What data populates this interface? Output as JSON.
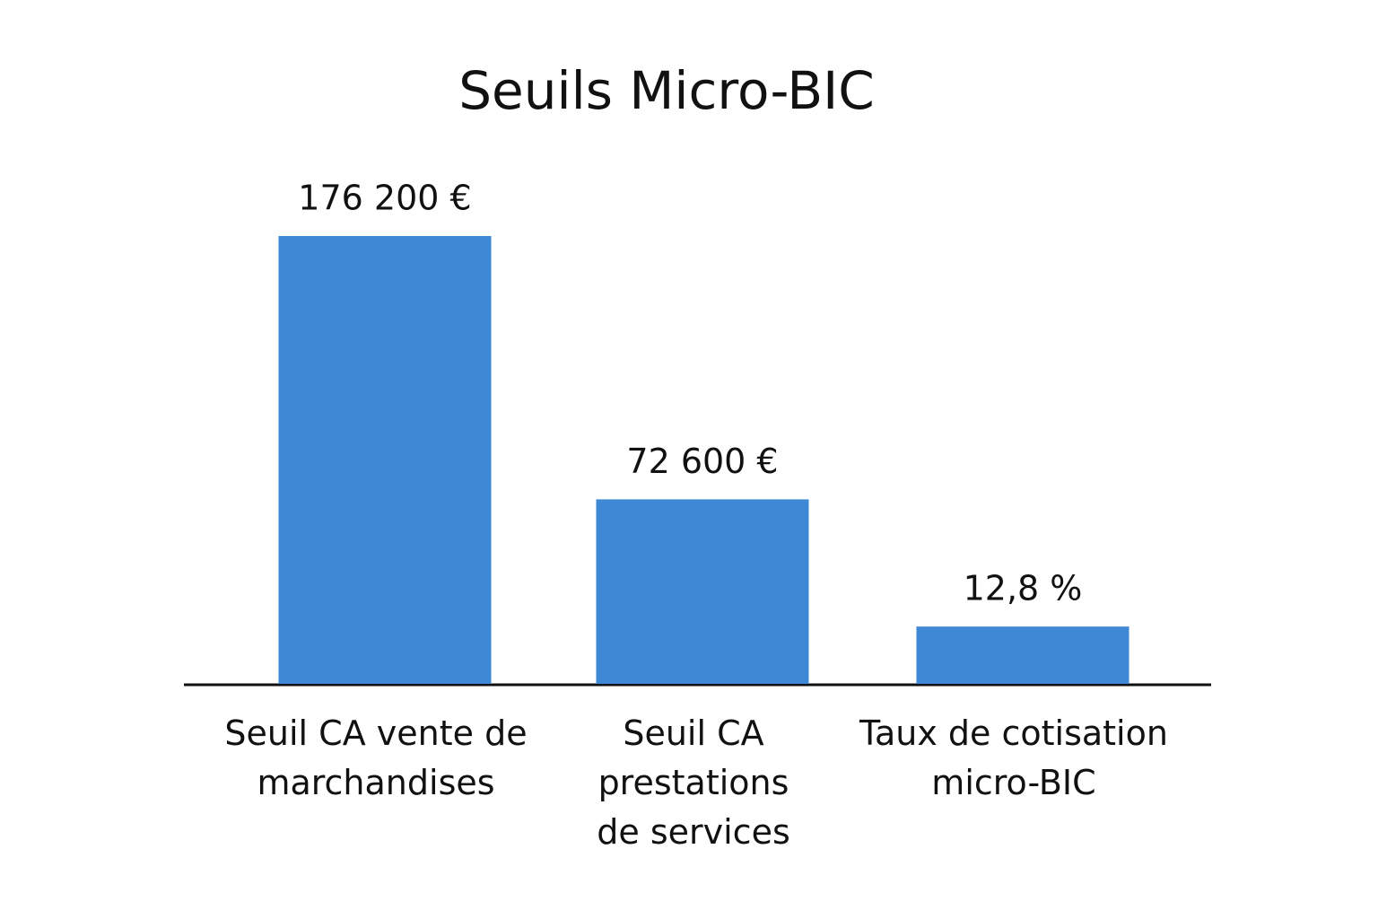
{
  "chart_data": {
    "type": "bar",
    "title": "Seuils Micro-BIC",
    "categories": [
      "Seuil CA vente de marchandises",
      "Seuil CA prestations de services",
      "Taux de cotisation micro-BIC"
    ],
    "values": [
      176200,
      72600,
      12.8
    ],
    "value_labels": [
      "176 200 €",
      "72 600 €",
      "12,8 %"
    ],
    "color": "#3f88d6"
  }
}
